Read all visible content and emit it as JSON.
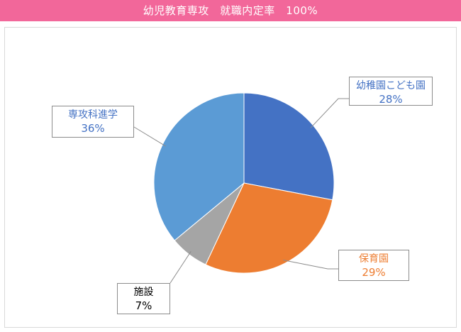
{
  "header": {
    "title": "幼児教育専攻　就職内定率　100%"
  },
  "chart_data": {
    "type": "pie",
    "start_angle": "12 o'clock",
    "direction": "clockwise",
    "slices": [
      {
        "label": "幼稚園こども園",
        "value": 28,
        "value_label": "28%",
        "color": "#4472c4",
        "text_color": "#4472c4"
      },
      {
        "label": "保育園",
        "value": 29,
        "value_label": "29%",
        "color": "#ed7d31",
        "text_color": "#ed7d31"
      },
      {
        "label": "施設",
        "value": 7,
        "value_label": "7%",
        "color": "#a5a5a5",
        "text_color": "#000000"
      },
      {
        "label": "専攻科進学",
        "value": 36,
        "value_label": "36%",
        "color": "#5b9bd5",
        "text_color": "#4472c4"
      }
    ],
    "legend": "none",
    "labels": "callouts"
  }
}
